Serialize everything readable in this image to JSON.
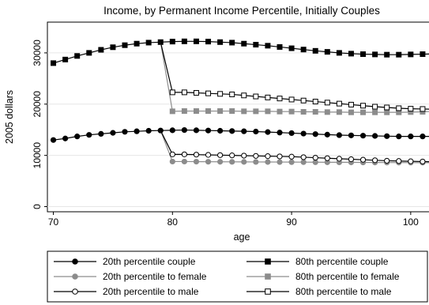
{
  "chart_data": {
    "type": "line",
    "title": "Income, by Permanent Income Percentile, Initially Couples",
    "xlabel": "age",
    "ylabel": "2005 dollars",
    "xlim": [
      69.5,
      102
    ],
    "ylim": [
      -1000,
      36000
    ],
    "xticks": [
      70,
      80,
      90,
      100
    ],
    "yticks": [
      0,
      10000,
      20000,
      30000
    ],
    "grid": "horizontal",
    "legend": "bottom",
    "series": [
      {
        "name": "20th percentile couple",
        "color": "#000000",
        "marker": "circle-filled",
        "x": [
          70,
          71,
          72,
          73,
          74,
          75,
          76,
          77,
          78,
          79
        ],
        "y": [
          13000,
          13300,
          13700,
          14000,
          14200,
          14400,
          14600,
          14700,
          14800,
          14850
        ]
      },
      {
        "name": "20th percentile to female",
        "color": "#8c8c8c",
        "marker": "circle-filled",
        "x": [
          79,
          80,
          81,
          82,
          83,
          84,
          85,
          86,
          87,
          88,
          89,
          90,
          91,
          92,
          93,
          94,
          95,
          96,
          97,
          98,
          99,
          100,
          101,
          102
        ],
        "y": [
          14850,
          8800,
          8800,
          8780,
          8760,
          8750,
          8740,
          8730,
          8720,
          8710,
          8700,
          8690,
          8680,
          8670,
          8660,
          8650,
          8640,
          8630,
          8620,
          8610,
          8600,
          8590,
          8580,
          8570
        ]
      },
      {
        "name": "20th percentile to male",
        "color": "#000000",
        "marker": "circle-open",
        "x": [
          79,
          80,
          81,
          82,
          83,
          84,
          85,
          86,
          87,
          88,
          89,
          90,
          91,
          92,
          93,
          94,
          95,
          96,
          97,
          98,
          99,
          100,
          101,
          102
        ],
        "y": [
          14850,
          10200,
          10200,
          10150,
          10100,
          10050,
          10000,
          9950,
          9900,
          9850,
          9800,
          9750,
          9650,
          9550,
          9450,
          9350,
          9250,
          9150,
          9050,
          8950,
          8900,
          8850,
          8800,
          8750
        ]
      },
      {
        "name": "20th percentile couple",
        "color": "#000000",
        "marker": "circle-filled",
        "x": [
          79,
          80,
          81,
          82,
          83,
          84,
          85,
          86,
          87,
          88,
          89,
          90,
          91,
          92,
          93,
          94,
          95,
          96,
          97,
          98,
          99,
          100,
          101,
          102
        ],
        "y": [
          14850,
          14900,
          14950,
          14900,
          14850,
          14800,
          14750,
          14700,
          14650,
          14550,
          14450,
          14350,
          14250,
          14150,
          14050,
          13950,
          13900,
          13850,
          13800,
          13750,
          13700,
          13700,
          13700,
          13700
        ]
      },
      {
        "name": "80th percentile couple",
        "color": "#000000",
        "marker": "square-filled",
        "x": [
          70,
          71,
          72,
          73,
          74,
          75,
          76,
          77,
          78,
          79,
          80,
          81,
          82,
          83,
          84,
          85,
          86,
          87,
          88,
          89,
          90,
          91,
          92,
          93,
          94,
          95,
          96,
          97,
          98,
          99,
          100,
          101,
          102
        ],
        "y": [
          28000,
          28700,
          29400,
          30000,
          30600,
          31100,
          31500,
          31800,
          32000,
          32100,
          32200,
          32250,
          32250,
          32200,
          32100,
          32000,
          31800,
          31600,
          31400,
          31150,
          30900,
          30650,
          30400,
          30200,
          30000,
          29850,
          29750,
          29700,
          29650,
          29650,
          29700,
          29750,
          29800
        ]
      },
      {
        "name": "80th percentile to female",
        "color": "#8c8c8c",
        "marker": "square-filled",
        "x": [
          79,
          80,
          81,
          82,
          83,
          84,
          85,
          86,
          87,
          88,
          89,
          90,
          91,
          92,
          93,
          94,
          95,
          96,
          97,
          98,
          99,
          100,
          101,
          102
        ],
        "y": [
          32100,
          18600,
          18650,
          18650,
          18650,
          18650,
          18650,
          18600,
          18600,
          18600,
          18550,
          18550,
          18500,
          18500,
          18450,
          18450,
          18400,
          18400,
          18400,
          18400,
          18400,
          18450,
          18500,
          18600
        ]
      },
      {
        "name": "80th percentile to male",
        "color": "#000000",
        "marker": "square-open",
        "x": [
          79,
          80,
          81,
          82,
          83,
          84,
          85,
          86,
          87,
          88,
          89,
          90,
          91,
          92,
          93,
          94,
          95,
          96,
          97,
          98,
          99,
          100,
          101,
          102
        ],
        "y": [
          32100,
          22300,
          22300,
          22200,
          22100,
          22000,
          21900,
          21700,
          21500,
          21300,
          21100,
          20900,
          20700,
          20500,
          20300,
          20100,
          19900,
          19700,
          19500,
          19350,
          19200,
          19100,
          19050,
          19000
        ]
      }
    ]
  },
  "legend": {
    "items": [
      {
        "label": "20th percentile couple",
        "color": "#000000",
        "marker": "circle-filled"
      },
      {
        "label": "80th percentile couple",
        "color": "#000000",
        "marker": "square-filled"
      },
      {
        "label": "20th percentile to female",
        "color": "#8c8c8c",
        "marker": "circle-filled"
      },
      {
        "label": "80th percentile to female",
        "color": "#8c8c8c",
        "marker": "square-filled"
      },
      {
        "label": "20th percentile to male",
        "color": "#000000",
        "marker": "circle-open"
      },
      {
        "label": "80th percentile to male",
        "color": "#000000",
        "marker": "square-open"
      }
    ]
  }
}
